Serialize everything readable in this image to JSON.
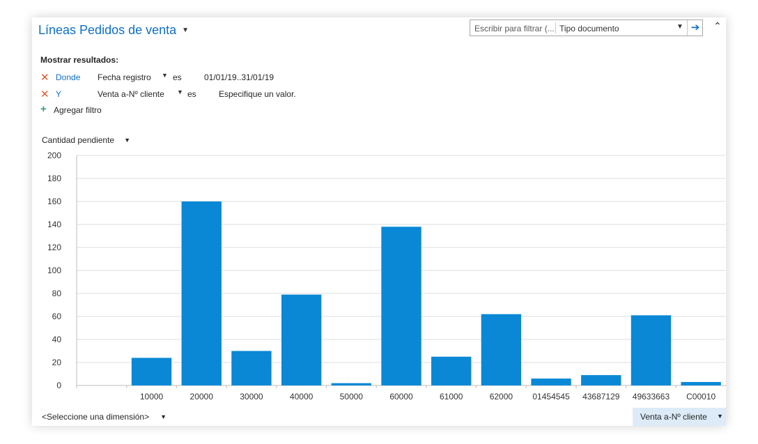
{
  "header": {
    "title": "Líneas Pedidos de venta",
    "filter_placeholder": "Escribir para filtrar (...",
    "filter_field": "Tipo documento"
  },
  "filters": {
    "heading": "Mostrar resultados:",
    "rows": [
      {
        "conjunction": "Donde",
        "field": "Fecha registro",
        "operator": "es",
        "value": "01/01/19..31/01/19"
      },
      {
        "conjunction": "Y",
        "field": "Venta a-Nº cliente",
        "operator": "es",
        "value": "Especifique un valor."
      }
    ],
    "add_label": "Agregar filtro"
  },
  "measure": {
    "label": "Cantidad pendiente"
  },
  "dimension": {
    "label": "<Seleccione una dimensión>"
  },
  "series_button": {
    "label": "Venta a-Nº cliente"
  },
  "icons": {
    "remove": "close-x-icon",
    "add": "plus-icon",
    "go": "arrow-right-icon",
    "collapse": "chevron-up-icon",
    "dropdown": "caret-down-icon"
  },
  "colors": {
    "bar": "#0a88d6",
    "title": "#0f6fc6",
    "remove": "#e05a2b",
    "add": "#35a07a"
  },
  "chart_data": {
    "type": "bar",
    "categories": [
      "",
      "10000",
      "20000",
      "30000",
      "40000",
      "50000",
      "60000",
      "61000",
      "62000",
      "01454545",
      "43687129",
      "49633663",
      "C00010"
    ],
    "values": [
      0,
      24,
      160,
      30,
      79,
      2,
      138,
      25,
      62,
      6,
      9,
      61,
      3
    ],
    "ylim": [
      0,
      200
    ],
    "yticks": [
      0,
      20,
      40,
      60,
      80,
      100,
      120,
      140,
      160,
      180,
      200
    ],
    "grid": true,
    "ylabel": "",
    "xlabel": ""
  }
}
